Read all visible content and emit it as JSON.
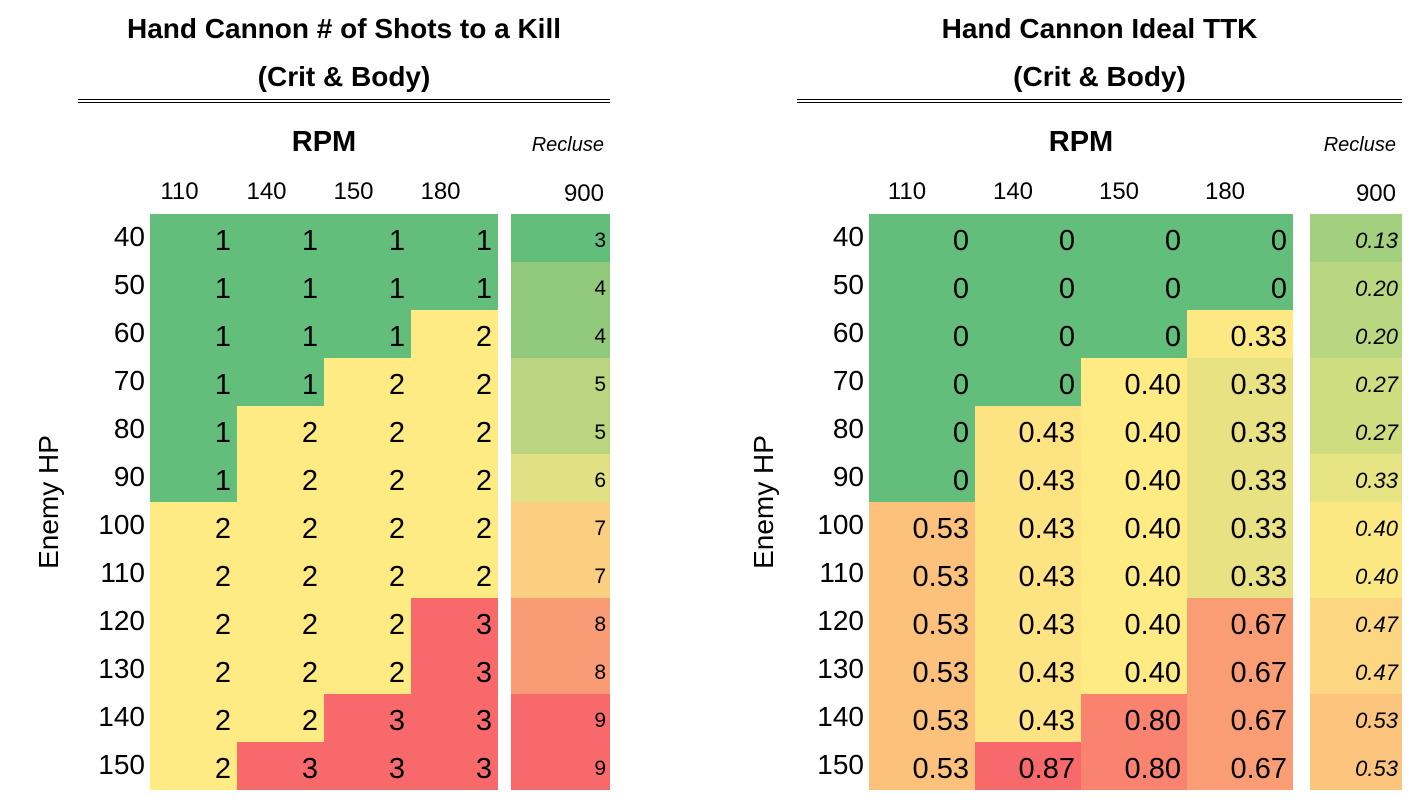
{
  "colors": {
    "green": "#63be7b",
    "yellow": "#ffeb84",
    "red": "#f8696b"
  },
  "chart_data": [
    {
      "type": "table",
      "title": "Hand Cannon # of Shots to a Kill",
      "subtitle": "(Crit & Body)",
      "column_group_label": "RPM",
      "row_axis_label": "Enemy HP",
      "columns": [
        "110",
        "140",
        "150",
        "180"
      ],
      "rows": [
        "40",
        "50",
        "60",
        "70",
        "80",
        "90",
        "100",
        "110",
        "120",
        "130",
        "140",
        "150"
      ],
      "values": [
        [
          1,
          1,
          1,
          1
        ],
        [
          1,
          1,
          1,
          1
        ],
        [
          1,
          1,
          1,
          2
        ],
        [
          1,
          1,
          2,
          2
        ],
        [
          1,
          2,
          2,
          2
        ],
        [
          1,
          2,
          2,
          2
        ],
        [
          2,
          2,
          2,
          2
        ],
        [
          2,
          2,
          2,
          2
        ],
        [
          2,
          2,
          2,
          3
        ],
        [
          2,
          2,
          2,
          3
        ],
        [
          2,
          2,
          3,
          3
        ],
        [
          2,
          3,
          3,
          3
        ]
      ],
      "cell_colors": [
        [
          "#63be7b",
          "#63be7b",
          "#63be7b",
          "#63be7b"
        ],
        [
          "#63be7b",
          "#63be7b",
          "#63be7b",
          "#63be7b"
        ],
        [
          "#63be7b",
          "#63be7b",
          "#63be7b",
          "#ffeb84"
        ],
        [
          "#63be7b",
          "#63be7b",
          "#ffeb84",
          "#ffeb84"
        ],
        [
          "#63be7b",
          "#ffeb84",
          "#ffeb84",
          "#ffeb84"
        ],
        [
          "#63be7b",
          "#ffeb84",
          "#ffeb84",
          "#ffeb84"
        ],
        [
          "#ffeb84",
          "#ffeb84",
          "#ffeb84",
          "#ffeb84"
        ],
        [
          "#ffeb84",
          "#ffeb84",
          "#ffeb84",
          "#ffeb84"
        ],
        [
          "#ffeb84",
          "#ffeb84",
          "#ffeb84",
          "#f8696b"
        ],
        [
          "#ffeb84",
          "#ffeb84",
          "#ffeb84",
          "#f8696b"
        ],
        [
          "#ffeb84",
          "#ffeb84",
          "#f8696b",
          "#f8696b"
        ],
        [
          "#ffeb84",
          "#f8696b",
          "#f8696b",
          "#f8696b"
        ]
      ],
      "extra_column": {
        "label": "Recluse",
        "header": "900",
        "italic": false,
        "values": [
          "3",
          "4",
          "4",
          "5",
          "5",
          "6",
          "7",
          "7",
          "8",
          "8",
          "9",
          "9"
        ],
        "colors": [
          "#63be7b",
          "#92ca7d",
          "#92ca7d",
          "#bad57f",
          "#bad57f",
          "#e1e183",
          "#fcce7f",
          "#fcce7f",
          "#f99b74",
          "#f99b74",
          "#f8696b",
          "#f8696b"
        ]
      }
    },
    {
      "type": "table",
      "title": "Hand Cannon Ideal TTK",
      "subtitle": "(Crit & Body)",
      "column_group_label": "RPM",
      "row_axis_label": "Enemy HP",
      "columns": [
        "110",
        "140",
        "150",
        "180"
      ],
      "rows": [
        "40",
        "50",
        "60",
        "70",
        "80",
        "90",
        "100",
        "110",
        "120",
        "130",
        "140",
        "150"
      ],
      "values": [
        [
          "0",
          "0",
          "0",
          "0"
        ],
        [
          "0",
          "0",
          "0",
          "0"
        ],
        [
          "0",
          "0",
          "0",
          "0.33"
        ],
        [
          "0",
          "0",
          "0.40",
          "0.33"
        ],
        [
          "0",
          "0.43",
          "0.40",
          "0.33"
        ],
        [
          "0",
          "0.43",
          "0.40",
          "0.33"
        ],
        [
          "0.53",
          "0.43",
          "0.40",
          "0.33"
        ],
        [
          "0.53",
          "0.43",
          "0.40",
          "0.33"
        ],
        [
          "0.53",
          "0.43",
          "0.40",
          "0.67"
        ],
        [
          "0.53",
          "0.43",
          "0.40",
          "0.67"
        ],
        [
          "0.53",
          "0.43",
          "0.80",
          "0.67"
        ],
        [
          "0.53",
          "0.87",
          "0.80",
          "0.67"
        ]
      ],
      "cell_colors": [
        [
          "#63be7b",
          "#63be7b",
          "#63be7b",
          "#63be7b"
        ],
        [
          "#63be7b",
          "#63be7b",
          "#63be7b",
          "#63be7b"
        ],
        [
          "#63be7b",
          "#63be7b",
          "#63be7b",
          "#fde983"
        ],
        [
          "#63be7b",
          "#63be7b",
          "#ffeb84",
          "#e8e283"
        ],
        [
          "#63be7b",
          "#fee383",
          "#ffeb84",
          "#e8e283"
        ],
        [
          "#63be7b",
          "#fee383",
          "#ffeb84",
          "#e8e283"
        ],
        [
          "#fcc27c",
          "#fee383",
          "#ffeb84",
          "#e8e283"
        ],
        [
          "#fcc27c",
          "#fee383",
          "#ffeb84",
          "#e8e283"
        ],
        [
          "#fcc27c",
          "#fee383",
          "#ffeb84",
          "#fa9d75"
        ],
        [
          "#fcc27c",
          "#fee383",
          "#ffeb84",
          "#fa9d75"
        ],
        [
          "#fcc27c",
          "#fee383",
          "#f9836f",
          "#fa9d75"
        ],
        [
          "#fcc27c",
          "#f8696b",
          "#f9836f",
          "#fa9d75"
        ]
      ],
      "extra_column": {
        "label": "Recluse",
        "header": "900",
        "italic": true,
        "values": [
          "0.13",
          "0.20",
          "0.20",
          "0.27",
          "0.27",
          "0.33",
          "0.40",
          "0.40",
          "0.47",
          "0.47",
          "0.53",
          "0.53"
        ],
        "colors": [
          "#a2d07f",
          "#b8d780",
          "#b8d780",
          "#cfdd81",
          "#cfdd81",
          "#e6e483",
          "#fce882",
          "#fce882",
          "#fcd680",
          "#fcd680",
          "#fcc47d",
          "#fcc47d"
        ]
      }
    }
  ]
}
